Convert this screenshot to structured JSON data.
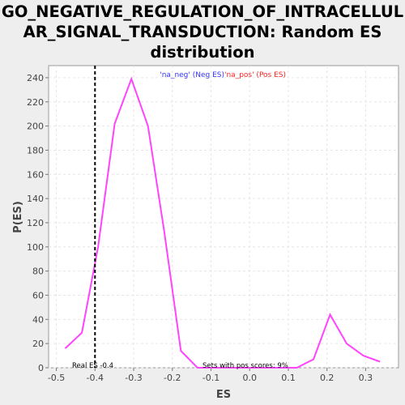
{
  "chart_data": {
    "type": "line",
    "title_lines": [
      "GO_NEGATIVE_REGULATION_OF_INTRACELLUL",
      "AR_SIGNAL_TRANSDUCTION: Random ES",
      "distribution"
    ],
    "xlabel": "ES",
    "ylabel": "P(ES)",
    "xlim": [
      -0.52,
      0.385
    ],
    "ylim": [
      0,
      250
    ],
    "x_ticks": [
      -0.5,
      -0.4,
      -0.3,
      -0.2,
      -0.1,
      0.0,
      0.1,
      0.2,
      0.3
    ],
    "x_tick_labels": [
      "-0.5",
      "-0.4",
      "-0.3",
      "-0.2",
      "-0.1",
      "0.0",
      "0.1",
      "0.2",
      "0.3"
    ],
    "y_ticks": [
      0,
      20,
      40,
      60,
      80,
      100,
      120,
      140,
      160,
      180,
      200,
      220,
      240
    ],
    "y_tick_labels": [
      "0",
      "20",
      "40",
      "60",
      "80",
      "100",
      "120",
      "140",
      "160",
      "180",
      "200",
      "220",
      "240"
    ],
    "grid": true,
    "legend": {
      "neg_text": "'na_neg' (Neg ES)",
      "neg_color": "#3333ff",
      "pos_text": "'na_pos' (Pos ES)",
      "pos_color": "#ff2222"
    },
    "series": [
      {
        "color": "#ff44ff",
        "x": [
          -0.477,
          -0.434,
          -0.392,
          -0.349,
          -0.306,
          -0.263,
          -0.221,
          -0.178,
          -0.135,
          -0.092,
          -0.049,
          -0.006,
          0.037,
          0.079,
          0.122,
          0.165,
          0.208,
          0.251,
          0.294,
          0.337
        ],
        "y": [
          16,
          29,
          100,
          202,
          239,
          200,
          113,
          14,
          0,
          0,
          0,
          0,
          0,
          0,
          0,
          7,
          44,
          20,
          10,
          5
        ]
      }
    ],
    "real_es": {
      "x": -0.4,
      "label": "Real ES -0.4"
    },
    "annotation": "Sets with pos scores: 9%"
  }
}
